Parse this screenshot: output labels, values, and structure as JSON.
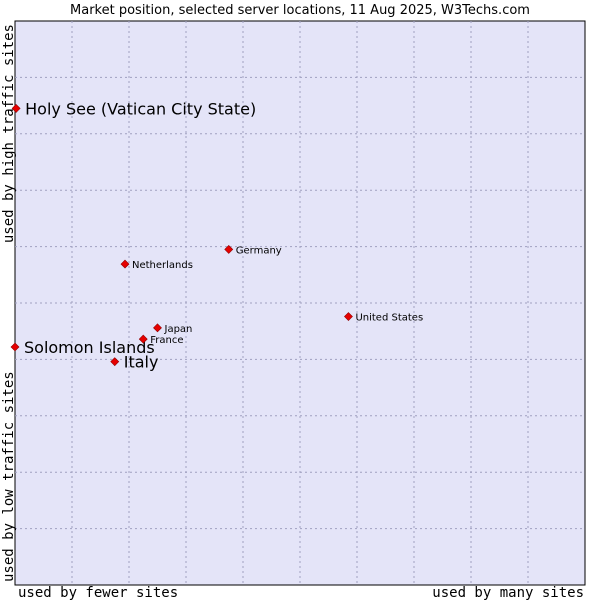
{
  "chart_data": {
    "type": "scatter",
    "title": "Market position, selected server locations, 11 Aug 2025, W3Techs.com",
    "x_axis": {
      "min_label": "used by fewer sites",
      "max_label": "used by many sites",
      "range": [
        0,
        100
      ]
    },
    "y_axis": {
      "min_label": "used by low traffic sites",
      "max_label": "used by high traffic sites",
      "range": [
        0,
        100
      ]
    },
    "grid": true,
    "colors": {
      "plot_background": "#e4e4f8",
      "grid": "#a0a0c0",
      "marker": "#e60000"
    },
    "points": [
      {
        "name": "Holy See (Vatican City State)",
        "x": 0.2,
        "y": 84.5,
        "highlight": true
      },
      {
        "name": "Solomon Islands",
        "x": 0.0,
        "y": 42.2,
        "highlight": true
      },
      {
        "name": "Italy",
        "x": 17.5,
        "y": 39.6,
        "highlight": true
      },
      {
        "name": "Netherlands",
        "x": 19.3,
        "y": 56.9,
        "highlight": false
      },
      {
        "name": "Germany",
        "x": 37.5,
        "y": 59.5,
        "highlight": false
      },
      {
        "name": "United States",
        "x": 58.5,
        "y": 47.6,
        "highlight": false
      },
      {
        "name": "Japan",
        "x": 25.0,
        "y": 45.6,
        "highlight": false
      },
      {
        "name": "France",
        "x": 22.5,
        "y": 43.6,
        "highlight": false
      }
    ]
  }
}
